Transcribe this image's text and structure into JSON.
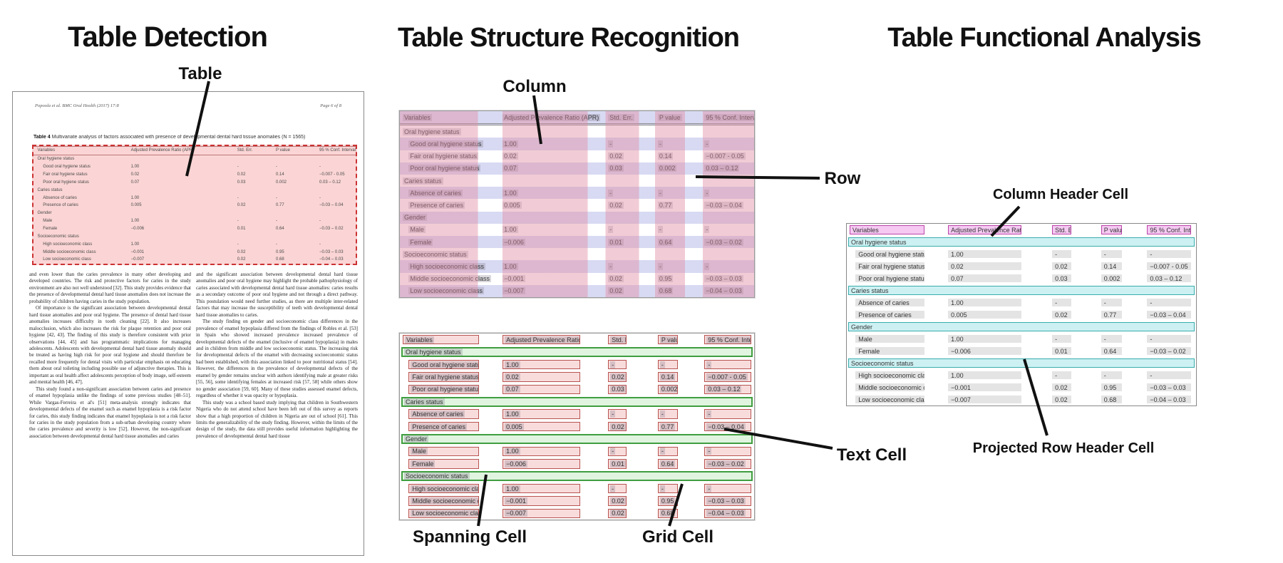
{
  "panels": {
    "detection": {
      "title": "Table Detection",
      "callout_table": "Table"
    },
    "structure": {
      "title": "Table Structure Recognition",
      "callouts": {
        "column": "Column",
        "row": "Row",
        "text_cell": "Text Cell",
        "spanning_cell": "Spanning Cell",
        "grid_cell": "Grid Cell"
      }
    },
    "functional": {
      "title": "Table Functional Analysis",
      "callouts": {
        "column_header_cell": "Column Header Cell",
        "projected_row_header_cell": "Projected Row Header Cell"
      }
    }
  },
  "document": {
    "header_left": "Popoola et al. BMC Oral Health  (2017) 17:8",
    "header_right": "Page 6 of 8",
    "caption_label": "Table 4",
    "caption_text": "Multivariate analysis of factors associated with presence of developmental dental hard tissue anomalies (N = 1565)",
    "body_left": [
      "and even lower than the caries prevalence in many other developing and developed countries. The risk and protective factors for caries in the study environment are also not well understood [32]. This study provides evidence that the presence of developmental dental hard tissue anomalies does not increase the probability of children having caries in the study population.",
      "Of importance is the significant association between developmental dental hard tissue anomalies and poor oral hygiene. The presence of dental hard tissue anomalies increases difficulty in tooth cleaning [22]. It also increases malocclusion, which also increases the risk for plaque retention and poor oral hygiene [42, 43]. The finding of this study is therefore consistent with prior observations [44, 45] and has programmatic implications for managing adolescents. Adolescents with developmental dental hard tissue anomaly should be treated as having high risk for poor oral hygiene and should therefore be recalled more frequently for dental visits with particular emphasis on educating them about oral toileting including possible use of adjunctive therapies. This is important as oral health affect adolescents perception of body image, self-esteem and mental health [46, 47].",
      "This study found a non-significant association between caries and presence of enamel hypoplasia unlike the findings of some previous studies [48–51]. While Vargas-Ferreira et al's [51] meta-analysis strongly indicates that developmental defects of the enamel such as enamel hypoplasia is a risk factor for caries, this study finding indicates that enamel hypoplasia is not a risk factor for caries in the study population from a sub-urban developing country where the caries prevalence and severity is low [52]. However, the non-significant association between developmental dental hard tissue anomalies and caries"
    ],
    "body_right": [
      "and the significant association between developmental dental hard tissue anomalies and poor oral hygiene may highlight the probable pathophysiology of caries associated with developmental dental hard tissue anomalies: caries results as a secondary outcome of poor oral hygiene and not through a direct pathway. This postulation would need further studies, as there are multiple inter-related factors that may increase the susceptibility of teeth with developmental dental hard tissue anomalies to caries.",
      "The study finding on gender and socioeconomic class differences in the prevalence of enamel hypoplasia differed from the findings of Robles et al. [53] in Spain who showed increased prevalence increased prevalence of developmental defects of the enamel (inclusive of enamel hypoplasia) in males and in children from middle and low socioeconomic status. The increasing risk for developmental defects of the enamel with decreasing socioeconomic status had been established, with this association linked to poor nutritional status [54]. However, the differences in the prevalence of developmental defects of the enamel by gender remains unclear with authors identifying male at greater risks [55, 56], some identifying females at increased risk [57, 58] while others show no gender association [59, 60]. Many of these studies assessed enamel defects, regardless of whether it was opacity or hypoplasia.",
      "This study was a school based study implying that children in Southwestern Nigeria who do not attend school have been left out of this survey as reports show that a high proportion of children in Nigeria are out of school [61]. This limits the generalizability of the study finding. However, within the limits of the design of the study, the data still provides useful information highlighting the prevalence of developmental dental hard tissue"
    ]
  },
  "table": {
    "columns": [
      "Variables",
      "Adjusted Prevalence Ratio (APR)",
      "Std. Err.",
      "P value",
      "95 % Conf. Interval"
    ],
    "rows": [
      {
        "type": "section",
        "label": "Oral hygiene status"
      },
      {
        "type": "data",
        "cells": [
          "Good oral hygiene status",
          "1.00",
          "-",
          "-",
          "-"
        ]
      },
      {
        "type": "data",
        "cells": [
          "Fair oral hygiene status",
          "0.02",
          "0.02",
          "0.14",
          "−0.007 - 0.05"
        ]
      },
      {
        "type": "data",
        "cells": [
          "Poor oral hygiene status",
          "0.07",
          "0.03",
          "0.002",
          "0.03 – 0.12"
        ]
      },
      {
        "type": "section",
        "label": "Caries status"
      },
      {
        "type": "data",
        "cells": [
          "Absence of caries",
          "1.00",
          "-",
          "-",
          "-"
        ]
      },
      {
        "type": "data",
        "cells": [
          "Presence of caries",
          "0.005",
          "0.02",
          "0.77",
          "−0.03 – 0.04"
        ]
      },
      {
        "type": "section",
        "label": "Gender"
      },
      {
        "type": "data",
        "cells": [
          "Male",
          "1.00",
          "-",
          "-",
          "-"
        ]
      },
      {
        "type": "data",
        "cells": [
          "Female",
          "−0.006",
          "0.01",
          "0.64",
          "−0.03 – 0.02"
        ]
      },
      {
        "type": "section",
        "label": "Socioeconomic status"
      },
      {
        "type": "data",
        "cells": [
          "High socioeconomic class",
          "1.00",
          "-",
          "-",
          "-"
        ]
      },
      {
        "type": "data",
        "cells": [
          "Middle socioeconomic class",
          "−0.001",
          "0.02",
          "0.95",
          "−0.03 – 0.03"
        ]
      },
      {
        "type": "data",
        "cells": [
          "Low socioeconomic class",
          "−0.007",
          "0.02",
          "0.68",
          "−0.04 – 0.03"
        ]
      }
    ]
  },
  "colors": {
    "detection_fill": "rgba(247,168,168,0.48)",
    "detection_border": "#cc3333",
    "row_band": "#d8daf3",
    "column_band": "rgba(224,141,163,0.45)",
    "grid_cell_fill": "#f8dcdc",
    "grid_cell_border": "#b85450",
    "spanning_cell_fill": "#e0f4e0",
    "spanning_cell_border": "#3f9e3f",
    "column_header_cell_fill": "#f5c9f2",
    "column_header_cell_border": "#bb44aa",
    "projected_row_header_cell_fill": "#cdf1f3",
    "projected_row_header_cell_border": "#3aacac",
    "text_cell_fill": "#e4e4e4",
    "text_highlight": "rgba(125,120,138,0.28)"
  }
}
